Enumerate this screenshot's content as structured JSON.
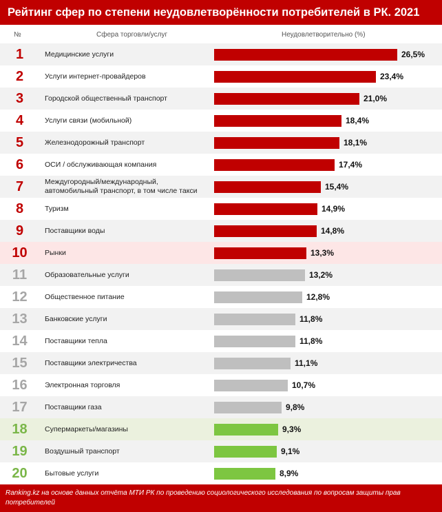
{
  "title": "Рейтинг сфер по степени неудовлетворённости потребителей в РК. 2021",
  "headers": {
    "rank": "№",
    "category": "Сфера торговли/услуг",
    "value": "Неудовлетворительно (%)"
  },
  "chart_data": {
    "type": "bar",
    "orientation": "horizontal",
    "title": "Рейтинг сфер по степени неудовлетворённости потребителей в РК. 2021",
    "ylabel": "Сфера торговли/услуг",
    "xlabel": "Неудовлетворительно (%)",
    "xlim": [
      0,
      26.5
    ],
    "ranks": [
      "1",
      "2",
      "3",
      "4",
      "5",
      "6",
      "7",
      "8",
      "9",
      "10",
      "11",
      "12",
      "13",
      "14",
      "15",
      "16",
      "17",
      "18",
      "19",
      "20"
    ],
    "categories": [
      "Медицинские услуги",
      "Услуги интернет-провайдеров",
      "Городской общественный транспорт",
      "Услуги связи (мобильной)",
      "Железнодорожный транспорт",
      "ОСИ / обслуживающая компания",
      "Междугородный/международный, автомобильный транспорт, в том числе такси",
      "Туризм",
      "Поставщики воды",
      "Рынки",
      "Образовательные услуги",
      "Общественное питание",
      "Банковские услуги",
      "Поставщики тепла",
      "Поставщики электричества",
      "Электронная торговля",
      "Поставщики газа",
      "Супермаркеты/магазины",
      "Воздушный транспорт",
      "Бытовые услуги"
    ],
    "values": [
      26.5,
      23.4,
      21.0,
      18.4,
      18.1,
      17.4,
      15.4,
      14.9,
      14.8,
      13.3,
      13.2,
      12.8,
      11.8,
      11.8,
      11.1,
      10.7,
      9.8,
      9.3,
      9.1,
      8.9
    ],
    "value_labels": [
      "26,5%",
      "23,4%",
      "21,0%",
      "18,4%",
      "18,1%",
      "17,4%",
      "15,4%",
      "14,9%",
      "14,8%",
      "13,3%",
      "13,2%",
      "12,8%",
      "11,8%",
      "11,8%",
      "11,1%",
      "10,7%",
      "9,8%",
      "9,3%",
      "9,1%",
      "8,9%"
    ],
    "groups": [
      "red",
      "red",
      "red",
      "red",
      "red",
      "red",
      "red",
      "red",
      "red",
      "red",
      "gray",
      "gray",
      "gray",
      "gray",
      "gray",
      "gray",
      "gray",
      "green",
      "green",
      "green"
    ],
    "highlighted_rows": [
      10,
      18
    ],
    "colors": {
      "red": "#c00000",
      "gray": "#bfbfbf",
      "green": "#7dc641"
    },
    "grid": false,
    "legend": "none"
  },
  "footer": "Ranking.kz на основе данных отчёта МТИ РК по проведению социологического исследования по вопросам защиты прав потребителей"
}
